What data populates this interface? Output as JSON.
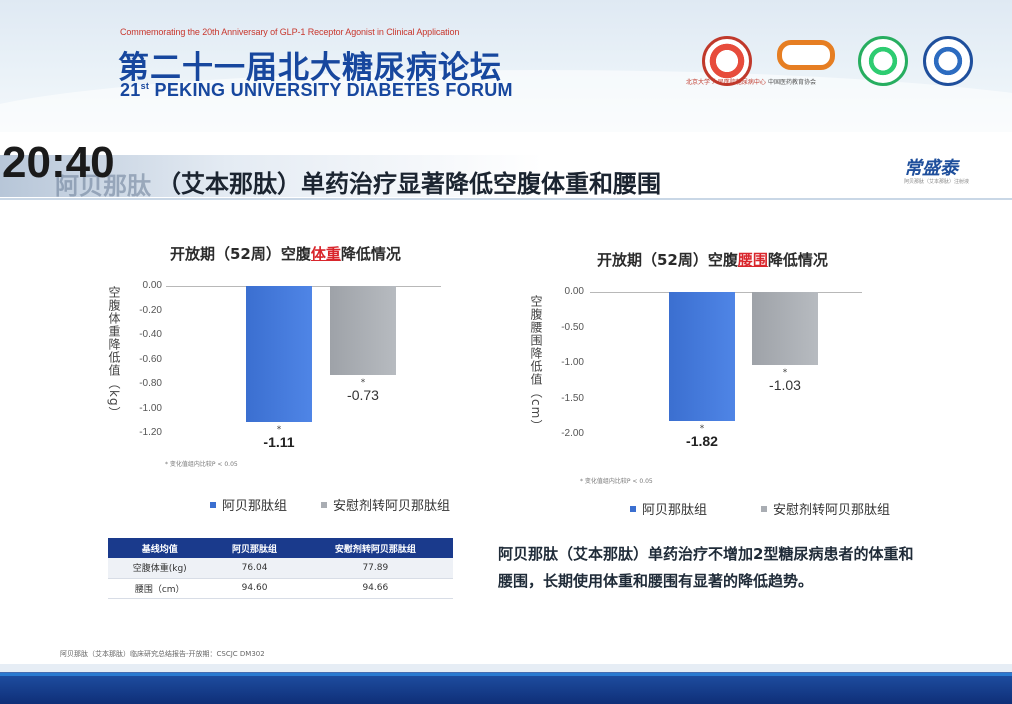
{
  "header": {
    "commemorate": "Commemorating the 20th Anniversary of GLP-1 Receptor Agonist in Clinical Application",
    "forum_cn": "第二十一届北大糖尿病论坛",
    "forum_en_num": "21",
    "forum_en_sup": "st",
    "forum_en_rest": " PEKING UNIVERSITY DIABETES FORUM",
    "logos": [
      "peking-university-seal-icon",
      "chinese-medical-association-logo-icon",
      "green-society-seal-icon",
      "blue-university-seal-icon"
    ],
    "logo1_caption": "北京大学 人民医院糖尿病中心",
    "logo2_caption": "中国医药教育协会"
  },
  "clock": "20:40",
  "slide": {
    "title_ghost": "阿贝那肽",
    "title": "（艾本那肽）单药治疗显著降低空腹体重和腰围",
    "brand": "常盛泰",
    "brand_sub": "阿贝那肽（艾本那肽）注射液"
  },
  "chart_data": [
    {
      "type": "bar",
      "title_prefix": "开放期（52周）空腹",
      "title_highlight": "体重",
      "title_suffix": "降低情况",
      "ylabel": "空腹体重降低值（kg）",
      "ylim": [
        -1.2,
        0
      ],
      "yticks": [
        "0.00",
        "-0.20",
        "-0.40",
        "-0.60",
        "-0.80",
        "-1.00",
        "-1.20"
      ],
      "series": [
        {
          "name": "阿贝那肽组",
          "value": -1.11,
          "label": "-1.11",
          "star": "*"
        },
        {
          "name": "安慰剂转阿贝那肽组",
          "value": -0.73,
          "label": "-0.73",
          "star": "*"
        }
      ],
      "footnote": "* 变化值组内比较P < 0.05"
    },
    {
      "type": "bar",
      "title_prefix": "开放期（52周）空腹",
      "title_highlight": "腰围",
      "title_suffix": "降低情况",
      "ylabel": "空腹腰围降低值（cm）",
      "ylim": [
        -2.0,
        0
      ],
      "yticks": [
        "0.00",
        "-0.50",
        "-1.00",
        "-1.50",
        "-2.00"
      ],
      "series": [
        {
          "name": "阿贝那肽组",
          "value": -1.82,
          "label": "-1.82",
          "star": "*"
        },
        {
          "name": "安慰剂转阿贝那肽组",
          "value": -1.03,
          "label": "-1.03",
          "star": "*"
        }
      ],
      "footnote": "* 变化值组内比较P < 0.05"
    }
  ],
  "legend": {
    "group_a": "阿贝那肽组",
    "group_b": "安慰剂转阿贝那肽组",
    "color_a": "#3b6fd0",
    "color_b": "#a9adb3"
  },
  "table": {
    "headers": [
      "基线均值",
      "阿贝那肽组",
      "安慰剂转阿贝那肽组"
    ],
    "rows": [
      [
        "空腹体重(kg)",
        "76.04",
        "77.89"
      ],
      [
        "腰围（cm）",
        "94.60",
        "94.66"
      ]
    ]
  },
  "summary": "阿贝那肽（艾本那肽）单药治疗不增加2型糖尿病患者的体重和腰围，长期使用体重和腰围有显著的降低趋势。",
  "source": "阿贝那肽（艾本那肽）临床研究总结报告-开放期：CSCJC DM302",
  "colors": {
    "brand_blue": "#17479e",
    "highlight_red": "#d9262c",
    "table_header": "#1a3a8c"
  }
}
